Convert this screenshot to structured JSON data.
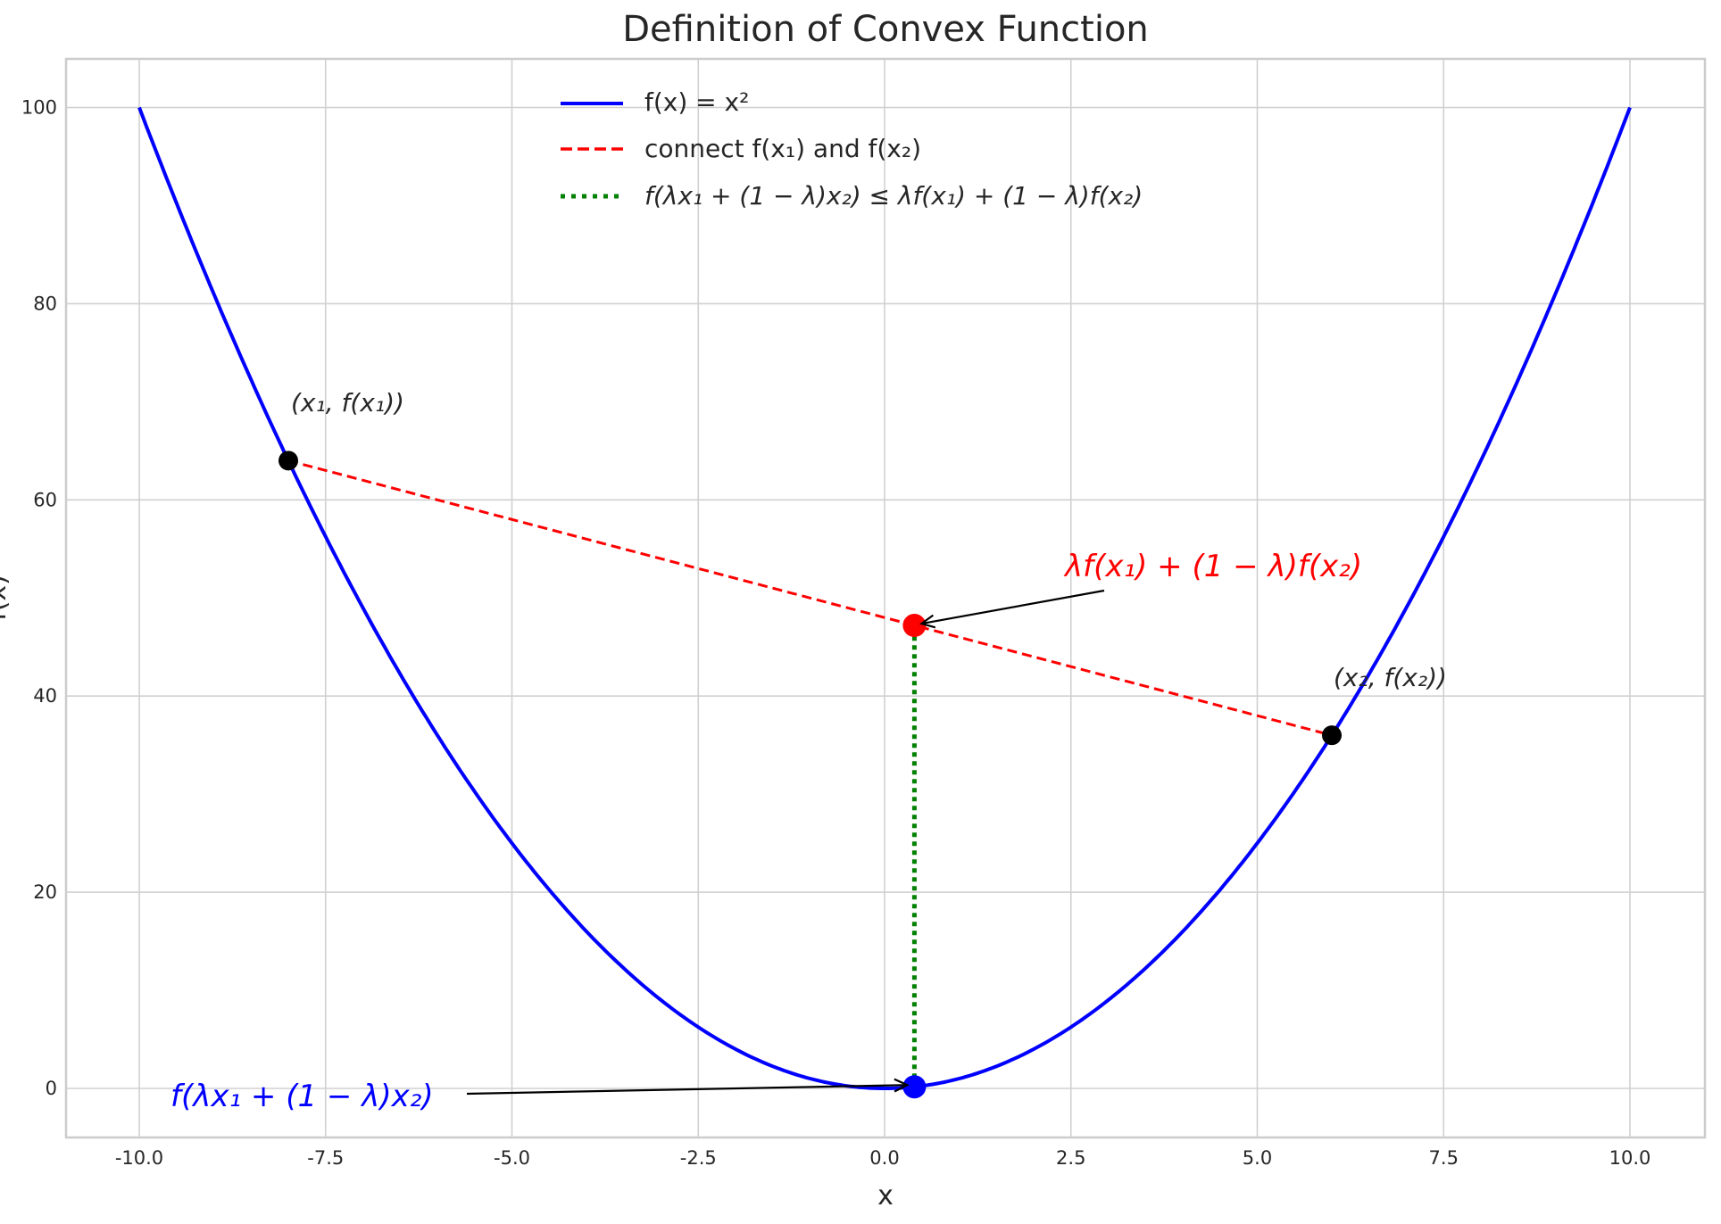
{
  "chart_data": {
    "type": "line",
    "title": "Definition of Convex Function",
    "xlabel": "x",
    "ylabel": "f(x)",
    "xlim": [
      -11,
      11
    ],
    "ylim": [
      -5,
      105
    ],
    "grid": true,
    "legend_position": "top-center",
    "x_ticks": [
      "-10.0",
      "-7.5",
      "-5.0",
      "-2.5",
      "0.0",
      "2.5",
      "5.0",
      "7.5",
      "10.0"
    ],
    "x_tick_values": [
      -10,
      -7.5,
      -5,
      -2.5,
      0,
      2.5,
      5,
      7.5,
      10
    ],
    "y_ticks": [
      "0",
      "20",
      "40",
      "60",
      "80",
      "100"
    ],
    "y_tick_values": [
      0,
      20,
      40,
      60,
      80,
      100
    ],
    "series": [
      {
        "name": "f(x) = x²",
        "kind": "function",
        "expression": "x^2",
        "x_range": [
          -10,
          10
        ],
        "color": "#0000ff",
        "style": "solid"
      },
      {
        "name": "connect f(x₁) and f(x₂)",
        "x": [
          -8,
          6
        ],
        "y": [
          64,
          36
        ],
        "color": "#ff0000",
        "style": "dashed"
      },
      {
        "name": "f(λx₁ + (1 − λ)x₂) ≤ λf(x₁) + (1 − λ)f(x₂)",
        "x": [
          0.4,
          0.4
        ],
        "y": [
          0.16,
          47.2
        ],
        "color": "#008000",
        "style": "dotted"
      }
    ],
    "points": [
      {
        "x": -8,
        "y": 64,
        "color": "#000000"
      },
      {
        "x": 6,
        "y": 36,
        "color": "#000000"
      },
      {
        "x": 0.4,
        "y": 47.2,
        "color": "#ff0000"
      },
      {
        "x": 0.4,
        "y": 0.16,
        "color": "#0000ff"
      }
    ],
    "annotations": {
      "p1": "(x₁, f(x₁))",
      "p2": "(x₂, f(x₂))",
      "chord_point": "λf(x₁) + (1 − λ)f(x₂)",
      "curve_point": "f(λx₁ + (1 − λ)x₂)"
    }
  }
}
